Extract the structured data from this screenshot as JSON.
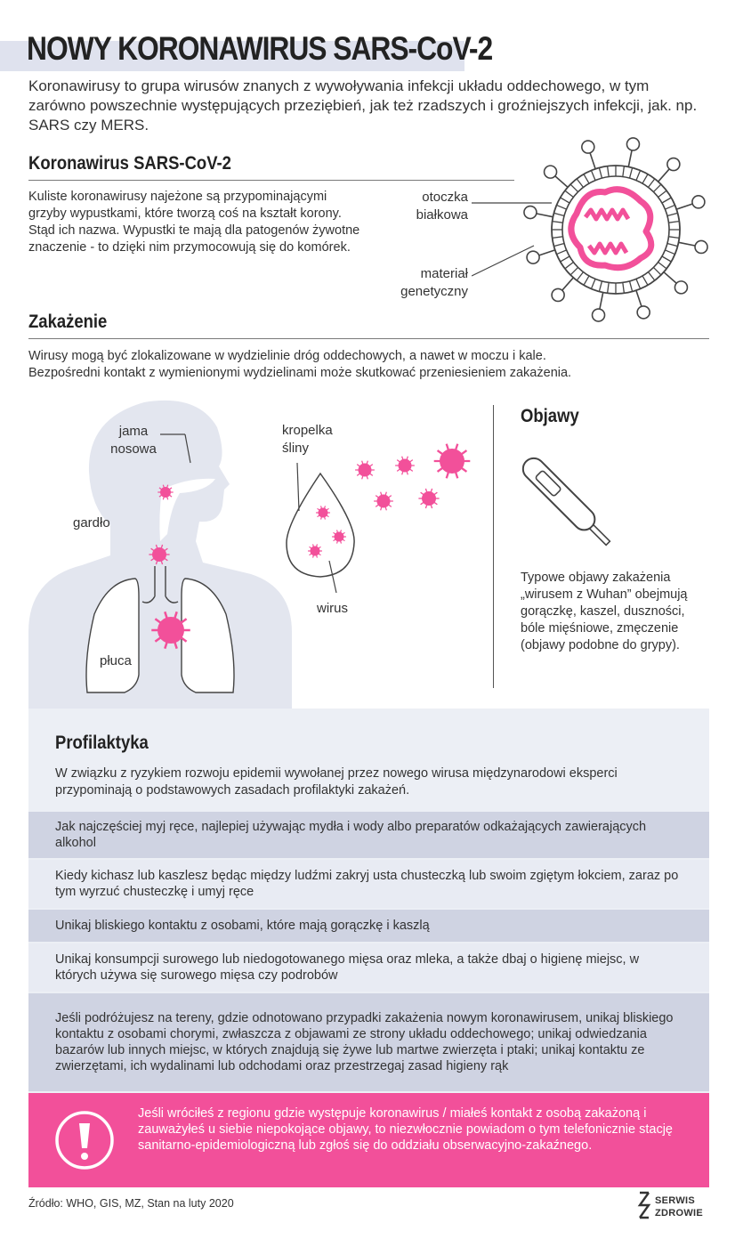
{
  "title": "NOWY KORONAWIRUS SARS-CoV-2",
  "intro": "Koronawirusy to grupa wirusów znanych z wywoływania infekcji układu oddechowego, w tym zarówno powszechnie występujących przeziębień, jak też rzadszych i groźniejszych infekcji, jak. np. SARS czy MERS.",
  "virus_section": {
    "heading": "Koronawirus SARS-CoV-2",
    "text": "Kuliste koronawirusy najeżone są przypominającymi grzyby wypustkami, które tworzą coś na kształt korony. Stąd ich nazwa. Wypustki te mają dla patogenów żywotne znaczenie - to dzięki nim przymocowują się do komórek.",
    "label_envelope_1": "otoczka",
    "label_envelope_2": "białkowa",
    "label_genetic_1": "materiał",
    "label_genetic_2": "genetyczny"
  },
  "infection_section": {
    "heading": "Zakażenie",
    "text_1": "Wirusy mogą być zlokalizowane w wydzielinie dróg oddechowych, a nawet w moczu i kale.",
    "text_2": "Bezpośredni kontakt z wymienionymi wydzielinami może skutkować przeniesieniem zakażenia.",
    "label_nasal_1": "jama",
    "label_nasal_2": "nosowa",
    "label_throat": "gardło",
    "label_lungs": "płuca",
    "label_droplet_1": "kropelka",
    "label_droplet_2": "śliny",
    "label_virus": "wirus"
  },
  "symptoms": {
    "heading": "Objawy",
    "text": "Typowe objawy zakażenia „wirusem z Wuhan” obejmują gorączkę, kaszel, duszności, bóle mięśniowe, zmęczenie (objawy podobne do grypy)."
  },
  "prevention": {
    "heading": "Profilaktyka",
    "intro": "W związku z ryzykiem rozwoju epidemii wywołanej przez nowego wirusa międzynarodowi eksperci przypominają o podstawowych zasadach profilaktyki zakażeń.",
    "items": [
      "Jak najczęściej myj ręce, najlepiej używając mydła i wody albo preparatów odkażających zawierających alkohol",
      "Kiedy kichasz lub kaszlesz będąc między ludźmi zakryj usta chusteczką lub swoim zgiętym łokciem, zaraz po tym wyrzuć chusteczkę i umyj ręce",
      "Unikaj bliskiego kontaktu z osobami, które mają gorączkę i kaszlą",
      "Unikaj konsumpcji surowego lub niedogotowanego mięsa oraz mleka, a także dbaj o higienę miejsc, w których używa się surowego mięsa czy podrobów",
      "Jeśli podróżujesz na tereny, gdzie odnotowano przypadki zakażenia nowym koronawirusem, unikaj bliskiego kontaktu z osobami chorymi, zwłaszcza z objawami ze strony układu oddechowego; unikaj odwiedzania bazarów lub innych miejsc, w których znajdują się żywe lub martwe zwierzęta i ptaki; unikaj kontaktu ze zwierzętami, ich wydalinami lub odchodami oraz przestrzegaj zasad higieny rąk"
    ]
  },
  "alert": {
    "icon": "exclamation-icon",
    "text": "Jeśli wróciłeś z regionu gdzie występuje koronawirus / miałeś kontakt z osobą zakażoną i zauważyłeś u siebie niepokojące objawy, to niezwłocznie powiadom o tym telefonicznie stację sanitarno-epidemiologiczną lub zgłoś się do oddziału obserwacyjno-zakaźnego."
  },
  "footer": {
    "source": "Źródło: WHO, GIS, MZ, Stan na luty 2020",
    "logo_line_1": "SERWIS",
    "logo_line_2": "ZDROWIE"
  },
  "colors": {
    "pink": "#f2509a",
    "silhouette": "#e3e6ef",
    "band": "#dfe2ee"
  }
}
